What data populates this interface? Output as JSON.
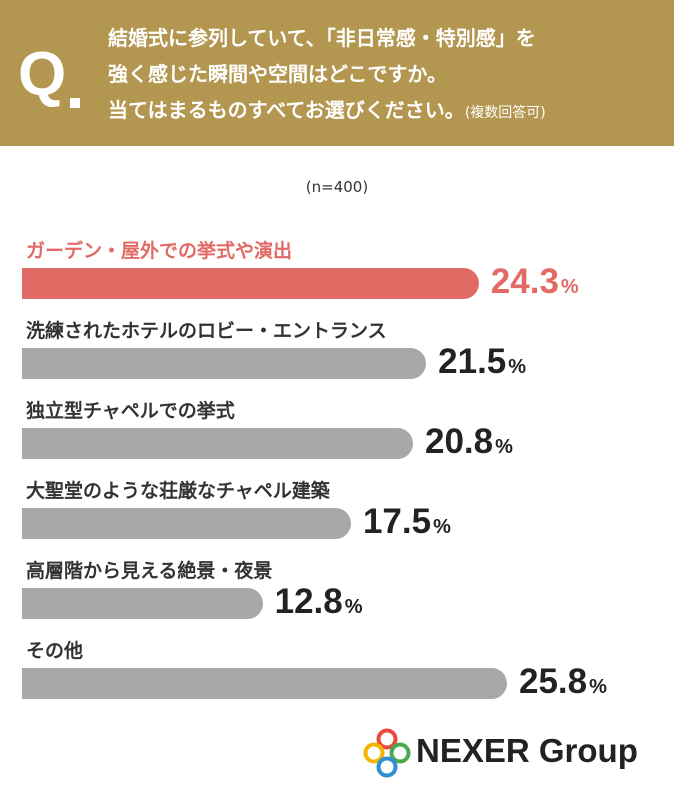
{
  "question": {
    "mark": "Q",
    "line1": "結婚式に参列していて、「非日常感・特別感」を",
    "line2": "強く感じた瞬間や空間はどこですか。",
    "line3": "当てはまるものすべてお選びください。",
    "note": "(複数回答可)"
  },
  "sample_size": "(n=400)",
  "chart_data": {
    "type": "bar",
    "orientation": "horizontal",
    "unit": "%",
    "categories": [
      "ガーデン・屋外での挙式や演出",
      "洗練されたホテルのロビー・エントランス",
      "独立型チャペルでの挙式",
      "大聖堂のような荘厳なチャペル建築",
      "高層階から見える絶景・夜景",
      "その他"
    ],
    "values": [
      24.3,
      21.5,
      20.8,
      17.5,
      12.8,
      25.8
    ],
    "highlight_index": 0,
    "colors": {
      "highlight": "#e26a64",
      "default": "#a8a8aa"
    },
    "xlim": [
      0,
      30
    ]
  },
  "logo": {
    "text": "NEXER Group",
    "icon": "rings-icon"
  }
}
